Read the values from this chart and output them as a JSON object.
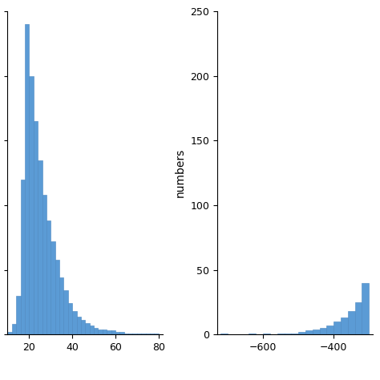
{
  "left_hist": {
    "bin_edges": [
      10,
      12,
      14,
      16,
      18,
      20,
      22,
      24,
      26,
      28,
      30,
      32,
      34,
      36,
      38,
      40,
      42,
      44,
      46,
      48,
      50,
      52,
      54,
      56,
      58,
      60,
      62,
      64,
      66,
      68,
      70,
      72,
      74,
      76,
      78,
      80
    ],
    "counts": [
      2,
      8,
      30,
      120,
      240,
      200,
      165,
      135,
      108,
      88,
      72,
      58,
      44,
      34,
      24,
      18,
      14,
      11,
      9,
      7,
      5,
      4,
      4,
      3,
      3,
      2,
      2,
      1,
      1,
      1,
      1,
      1,
      1,
      1,
      1
    ],
    "xlim": [
      10,
      82
    ],
    "xticks": [
      20,
      40,
      60,
      80
    ],
    "ylim": [
      0,
      250
    ]
  },
  "right_hist": {
    "bin_edges": [
      -720,
      -700,
      -680,
      -660,
      -640,
      -620,
      -600,
      -580,
      -560,
      -540,
      -520,
      -500,
      -480,
      -460,
      -440,
      -420,
      -400,
      -380,
      -360,
      -340,
      -320,
      -300
    ],
    "counts": [
      1,
      0,
      0,
      0,
      1,
      0,
      1,
      0,
      1,
      1,
      1,
      2,
      3,
      4,
      5,
      7,
      10,
      13,
      18,
      25,
      40
    ],
    "xlim": [
      -730,
      -290
    ],
    "xticks": [
      -600,
      -400
    ],
    "ylim": [
      0,
      250
    ],
    "yticks": [
      0,
      50,
      100,
      150,
      200,
      250
    ],
    "ylabel": "numbers"
  },
  "bar_color": "#5b9bd5",
  "bar_edgecolor": "#4a87c0",
  "background_color": "#ffffff",
  "tick_fontsize": 9,
  "ylabel_fontsize": 10,
  "figsize": [
    4.74,
    4.74
  ],
  "dpi": 100
}
